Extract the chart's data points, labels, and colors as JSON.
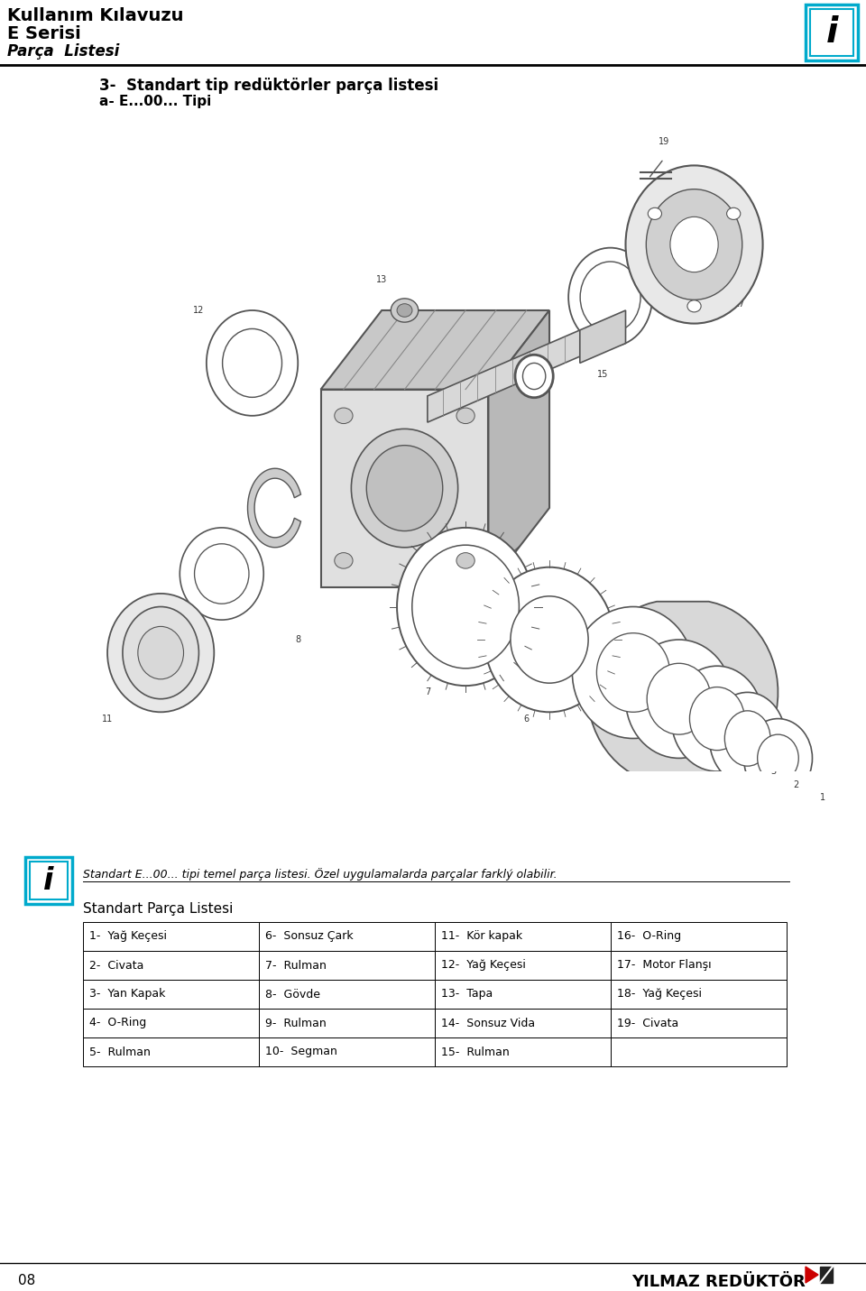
{
  "page_number": "08",
  "header_line1": "Kullanım Kılavuzu",
  "header_line2": "E Serisi",
  "header_line3": "Parça  Listesi",
  "section_title_line1": "3-  Standart tip redüktörler parça listesi",
  "section_title_line2": "a- E...00... Tipi",
  "info_text": "Standart E...00... tipi temel parça listesi. Özel uygulamalarda parçalar farklý olabilir.",
  "parts_list_title": "Standart Parça Listesi",
  "table_data": [
    [
      "1-  Yağ Keçesi",
      "6-  Sonsuz Çark",
      "11-  Kör kapak",
      "16-  O-Ring"
    ],
    [
      "2-  Civata",
      "7-  Rulman",
      "12-  Yağ Keçesi",
      "17-  Motor Flanşı"
    ],
    [
      "3-  Yan Kapak",
      "8-  Gövde",
      "13-  Tapa",
      "18-  Yağ Keçesi"
    ],
    [
      "4-  O-Ring",
      "9-  Rulman",
      "14-  Sonsuz Vida",
      "19-  Civata"
    ],
    [
      "5-  Rulman",
      "10-  Segman",
      "15-  Rulman",
      ""
    ]
  ],
  "bg_color": "#ffffff",
  "text_color": "#000000",
  "info_box_border": "#00aacc",
  "footer_text": "YILMAZ REDÜKTÖR",
  "info_icon_color": "#00aacc",
  "dark_gray": "#555555",
  "med_gray": "#888888",
  "light_gray": "#cccccc",
  "very_light_gray": "#eeeeee"
}
